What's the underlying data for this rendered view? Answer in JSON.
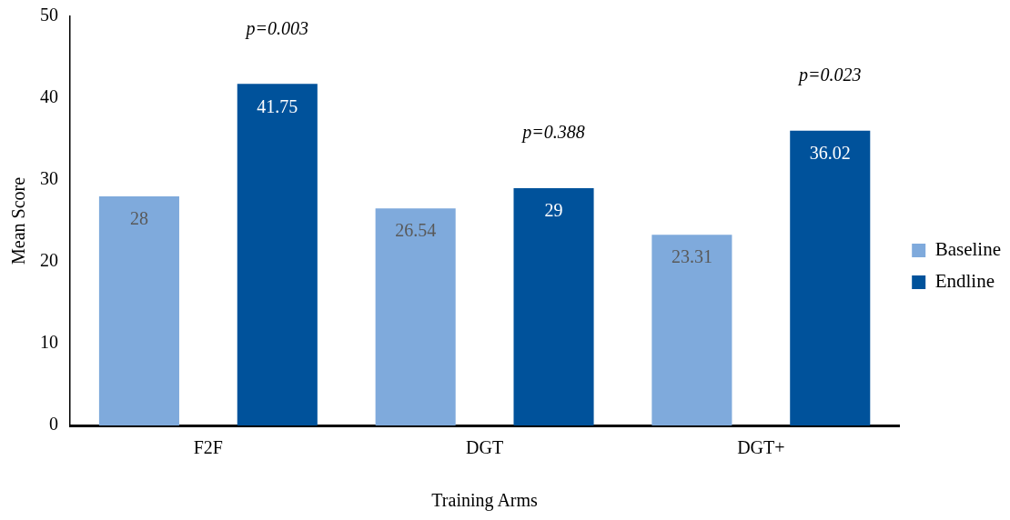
{
  "chart_data": {
    "type": "bar",
    "xlabel": "Training Arms",
    "ylabel": "Mean Score",
    "categories": [
      "F2F",
      "DGT",
      "DGT+"
    ],
    "series": [
      {
        "name": "Baseline",
        "color": "#7faadc",
        "values": [
          28,
          26.54,
          23.31
        ]
      },
      {
        "name": "Endline",
        "color": "#00529b",
        "values": [
          41.75,
          29,
          36.02
        ]
      }
    ],
    "ylim": [
      0,
      50
    ],
    "yticks": [
      0,
      10,
      20,
      30,
      40,
      50
    ],
    "grid": false,
    "legend": "right",
    "data_labels": true,
    "annotations": [
      "p=0.003",
      "p=0.388",
      "p=0.023"
    ]
  }
}
